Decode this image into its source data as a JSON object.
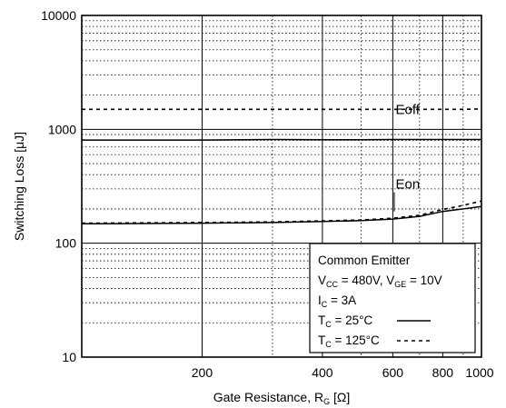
{
  "chart_data": {
    "type": "line",
    "xscale": "log",
    "yscale": "log",
    "xlim": [
      100,
      1000
    ],
    "ylim": [
      10,
      10000
    ],
    "x_ticks": [
      "200",
      "400",
      "600",
      "800",
      "1000"
    ],
    "y_ticks": [
      "10",
      "100",
      "1000",
      "10000"
    ],
    "xlabel": "Gate Resistance, R",
    "xlabel_sub": "G",
    "xlabel_unit": " [Ω]",
    "ylabel": "Switching Loss [μJ]",
    "grid": true,
    "series": [
      {
        "name": "Eoff",
        "tc": "25",
        "style": "solid",
        "x": [
          100,
          200,
          300,
          400,
          500,
          600,
          700,
          800,
          900,
          1000
        ],
        "values": [
          805,
          805,
          815,
          810,
          812,
          815,
          815,
          815,
          815,
          815
        ]
      },
      {
        "name": "Eoff",
        "tc": "125",
        "style": "dashed",
        "x": [
          100,
          200,
          300,
          400,
          500,
          600,
          700,
          800,
          900,
          1000
        ],
        "values": [
          1500,
          1500,
          1500,
          1500,
          1500,
          1500,
          1500,
          1500,
          1500,
          1510
        ]
      },
      {
        "name": "Eon",
        "tc": "25",
        "style": "solid",
        "x": [
          100,
          200,
          300,
          400,
          500,
          600,
          700,
          800,
          900,
          1000
        ],
        "values": [
          148,
          150,
          152,
          155,
          158,
          163,
          172,
          190,
          200,
          210
        ]
      },
      {
        "name": "Eon",
        "tc": "125",
        "style": "dashed",
        "x": [
          100,
          200,
          300,
          400,
          500,
          600,
          700,
          800,
          900,
          1000
        ],
        "values": [
          150,
          152,
          154,
          157,
          160,
          166,
          176,
          198,
          215,
          235
        ]
      }
    ],
    "curve_labels": [
      {
        "text": "Eoff",
        "x": 610,
        "y": 1500
      },
      {
        "text": "Eon",
        "x": 610,
        "y": 330
      }
    ],
    "legend": {
      "placement": "bottom-right",
      "lines": [
        {
          "key": "title",
          "parts": [
            {
              "t": "Common Emitter"
            }
          ]
        },
        {
          "key": "v",
          "parts": [
            {
              "t": "V"
            },
            {
              "t": "CC",
              "sub": true
            },
            {
              "t": " = 480V, V"
            },
            {
              "t": "GE",
              "sub": true
            },
            {
              "t": " = 10V"
            }
          ]
        },
        {
          "key": "ic",
          "parts": [
            {
              "t": "I"
            },
            {
              "t": "C",
              "sub": true
            },
            {
              "t": " = 3A"
            }
          ]
        },
        {
          "key": "tc25",
          "parts": [
            {
              "t": "T"
            },
            {
              "t": "C",
              "sub": true
            },
            {
              "t": " =  25°C"
            }
          ],
          "style": "solid"
        },
        {
          "key": "tc125",
          "parts": [
            {
              "t": "T"
            },
            {
              "t": "C",
              "sub": true
            },
            {
              "t": " = 125°C"
            }
          ],
          "style": "dashed"
        }
      ]
    }
  }
}
